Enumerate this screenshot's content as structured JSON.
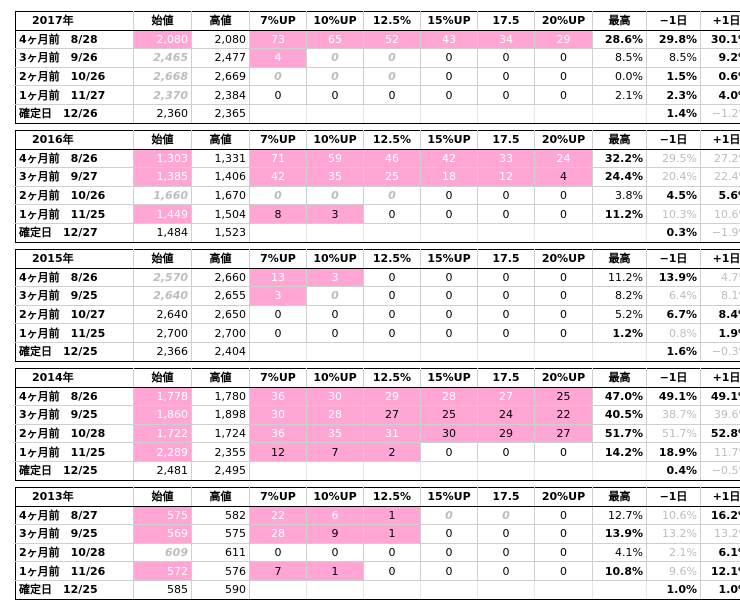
{
  "columns": [
    "",
    "始値",
    "高値",
    "7%UP",
    "10%UP",
    "12.5%",
    "15%UP",
    "17.5",
    "20%UP",
    "最高",
    "−1日",
    "+1日"
  ],
  "blocks": [
    {
      "year": "2017年",
      "rows": [
        {
          "label": "4ヶ月前　8/28",
          "open": "2,080",
          "high": "2,080",
          "ups": [
            "73",
            "65",
            "52",
            "43",
            "34",
            "29"
          ],
          "max": "28.6%",
          "m1": "29.8%",
          "p1": "30.1%"
        },
        {
          "label": "3ヶ月前　9/26",
          "open": "2,465",
          "high": "2,477",
          "ups": [
            "4",
            "0",
            "0",
            "0",
            "0",
            "0"
          ],
          "max": "8.5%",
          "m1": "8.5%",
          "p1": "9.2%"
        },
        {
          "label": "2ヶ月前　10/26",
          "open": "2,668",
          "high": "2,669",
          "ups": [
            "0",
            "0",
            "0",
            "0",
            "0",
            "0"
          ],
          "max": "0.0%",
          "m1": "1.5%",
          "p1": "0.6%"
        },
        {
          "label": "1ヶ月前　11/27",
          "open": "2,370",
          "high": "2,384",
          "ups": [
            "0",
            "0",
            "0",
            "0",
            "0",
            "0"
          ],
          "max": "2.1%",
          "m1": "2.3%",
          "p1": "4.0%"
        }
      ],
      "confirm": {
        "label": "確定日　12/26",
        "open": "2,360",
        "high": "2,365",
        "m1": "1.4%",
        "p1": "−1.2%"
      }
    },
    {
      "year": "2016年",
      "rows": [
        {
          "label": "4ヶ月前　8/26",
          "open": "1,303",
          "high": "1,331",
          "ups": [
            "71",
            "59",
            "46",
            "42",
            "33",
            "24"
          ],
          "max": "32.2%",
          "m1": "29.5%",
          "p1": "27.2%"
        },
        {
          "label": "3ヶ月前　9/27",
          "open": "1,385",
          "high": "1,406",
          "ups": [
            "42",
            "35",
            "25",
            "18",
            "12",
            "4"
          ],
          "max": "24.4%",
          "m1": "20.4%",
          "p1": "22.4%"
        },
        {
          "label": "2ヶ月前　10/26",
          "open": "1,660",
          "high": "1,670",
          "ups": [
            "0",
            "0",
            "0",
            "0",
            "0",
            "0"
          ],
          "max": "3.8%",
          "m1": "4.5%",
          "p1": "5.6%"
        },
        {
          "label": "1ヶ月前　11/25",
          "open": "1,449",
          "high": "1,504",
          "ups": [
            "8",
            "3",
            "0",
            "0",
            "0",
            "0"
          ],
          "max": "11.2%",
          "m1": "10.3%",
          "p1": "10.6%"
        }
      ],
      "confirm": {
        "label": "確定日　12/27",
        "open": "1,484",
        "high": "1,523",
        "m1": "0.3%",
        "p1": "−1.9%"
      }
    },
    {
      "year": "2015年",
      "rows": [
        {
          "label": "4ヶ月前　8/26",
          "open": "2,570",
          "high": "2,660",
          "ups": [
            "13",
            "3",
            "0",
            "0",
            "0",
            "0"
          ],
          "max": "11.2%",
          "m1": "13.9%",
          "p1": "4.7%"
        },
        {
          "label": "3ヶ月前　9/25",
          "open": "2,640",
          "high": "2,655",
          "ups": [
            "3",
            "0",
            "0",
            "0",
            "0",
            "0"
          ],
          "max": "8.2%",
          "m1": "6.4%",
          "p1": "8.1%"
        },
        {
          "label": "2ヶ月前　10/27",
          "open": "2,640",
          "high": "2,650",
          "ups": [
            "0",
            "0",
            "0",
            "0",
            "0",
            "0"
          ],
          "max": "5.2%",
          "m1": "6.7%",
          "p1": "8.4%"
        },
        {
          "label": "1ヶ月前　11/25",
          "open": "2,700",
          "high": "2,700",
          "ups": [
            "0",
            "0",
            "0",
            "0",
            "0",
            "0"
          ],
          "max": "1.2%",
          "m1": "0.8%",
          "p1": "1.9%"
        }
      ],
      "confirm": {
        "label": "確定日　12/25",
        "open": "2,366",
        "high": "2,404",
        "m1": "1.6%",
        "p1": "−0.3%"
      }
    },
    {
      "year": "2014年",
      "rows": [
        {
          "label": "4ヶ月前　8/26",
          "open": "1,778",
          "high": "1,780",
          "ups": [
            "36",
            "30",
            "29",
            "28",
            "27",
            "25"
          ],
          "max": "47.0%",
          "m1": "49.1%",
          "p1": "49.1%"
        },
        {
          "label": "3ヶ月前　9/25",
          "open": "1,860",
          "high": "1,898",
          "ups": [
            "30",
            "28",
            "27",
            "25",
            "24",
            "22"
          ],
          "max": "40.5%",
          "m1": "38.7%",
          "p1": "39.6%"
        },
        {
          "label": "2ヶ月前　10/28",
          "open": "1,722",
          "high": "1,724",
          "ups": [
            "36",
            "35",
            "31",
            "30",
            "29",
            "27"
          ],
          "max": "51.7%",
          "m1": "51.7%",
          "p1": "52.8%"
        },
        {
          "label": "1ヶ月前　11/25",
          "open": "2,289",
          "high": "2,355",
          "ups": [
            "12",
            "7",
            "2",
            "0",
            "0",
            "0"
          ],
          "max": "14.2%",
          "m1": "18.9%",
          "p1": "11.7%"
        }
      ],
      "confirm": {
        "label": "確定日　12/25",
        "open": "2,481",
        "high": "2,495",
        "m1": "0.4%",
        "p1": "−0.5%"
      }
    },
    {
      "year": "2013年",
      "rows": [
        {
          "label": "4ヶ月前　8/27",
          "open": "575",
          "high": "582",
          "ups": [
            "22",
            "6",
            "1",
            "0",
            "0",
            "0"
          ],
          "max": "12.7%",
          "m1": "10.6%",
          "p1": "16.2%"
        },
        {
          "label": "3ヶ月前　9/25",
          "open": "569",
          "high": "575",
          "ups": [
            "28",
            "9",
            "1",
            "0",
            "0",
            "0"
          ],
          "max": "13.9%",
          "m1": "13.2%",
          "p1": "13.2%"
        },
        {
          "label": "2ヶ月前　10/28",
          "open": "609",
          "high": "611",
          "ups": [
            "0",
            "0",
            "0",
            "0",
            "0",
            "0"
          ],
          "max": "4.1%",
          "m1": "2.1%",
          "p1": "6.1%"
        },
        {
          "label": "1ヶ月前　11/26",
          "open": "572",
          "high": "576",
          "ups": [
            "7",
            "1",
            "0",
            "0",
            "0",
            "0"
          ],
          "max": "10.8%",
          "m1": "9.6%",
          "p1": "12.1%"
        }
      ],
      "confirm": {
        "label": "確定日　12/25",
        "open": "585",
        "high": "590",
        "m1": "1.0%",
        "p1": "1.0%"
      }
    }
  ]
}
